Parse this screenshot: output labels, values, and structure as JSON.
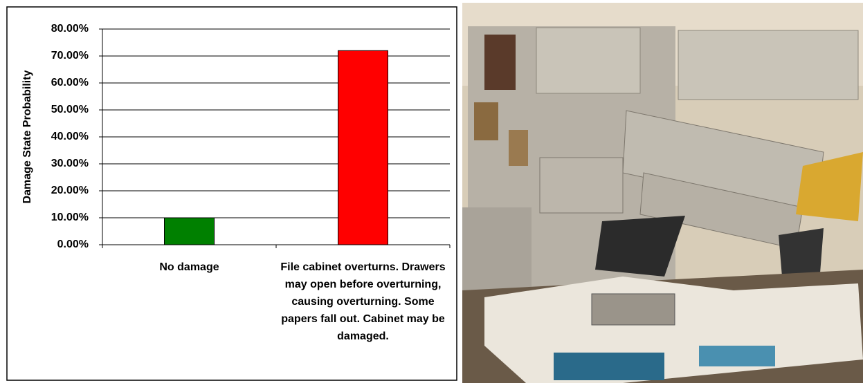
{
  "chart_data": {
    "type": "bar",
    "y_label": "Damage State Probability",
    "categories": [
      "No damage",
      "File cabinet overturns. Drawers may open before overturning, causing overturning. Some papers fall out. Cabinet may be damaged."
    ],
    "series": [
      {
        "name": "Damage State Probability",
        "values": [
          10,
          72
        ],
        "colors": [
          "#008000",
          "#ff0000"
        ]
      }
    ],
    "ylim": [
      0,
      80
    ],
    "yticks": [
      {
        "value": 0,
        "label": "0.00%"
      },
      {
        "value": 10,
        "label": "10.00%"
      },
      {
        "value": 20,
        "label": "20.00%"
      },
      {
        "value": 30,
        "label": "30.00%"
      },
      {
        "value": 40,
        "label": "40.00%"
      },
      {
        "value": 50,
        "label": "50.00%"
      },
      {
        "value": 60,
        "label": "60.00%"
      },
      {
        "value": 70,
        "label": "70.00%"
      },
      {
        "value": 80,
        "label": "80.00%"
      }
    ],
    "grid": true
  }
}
